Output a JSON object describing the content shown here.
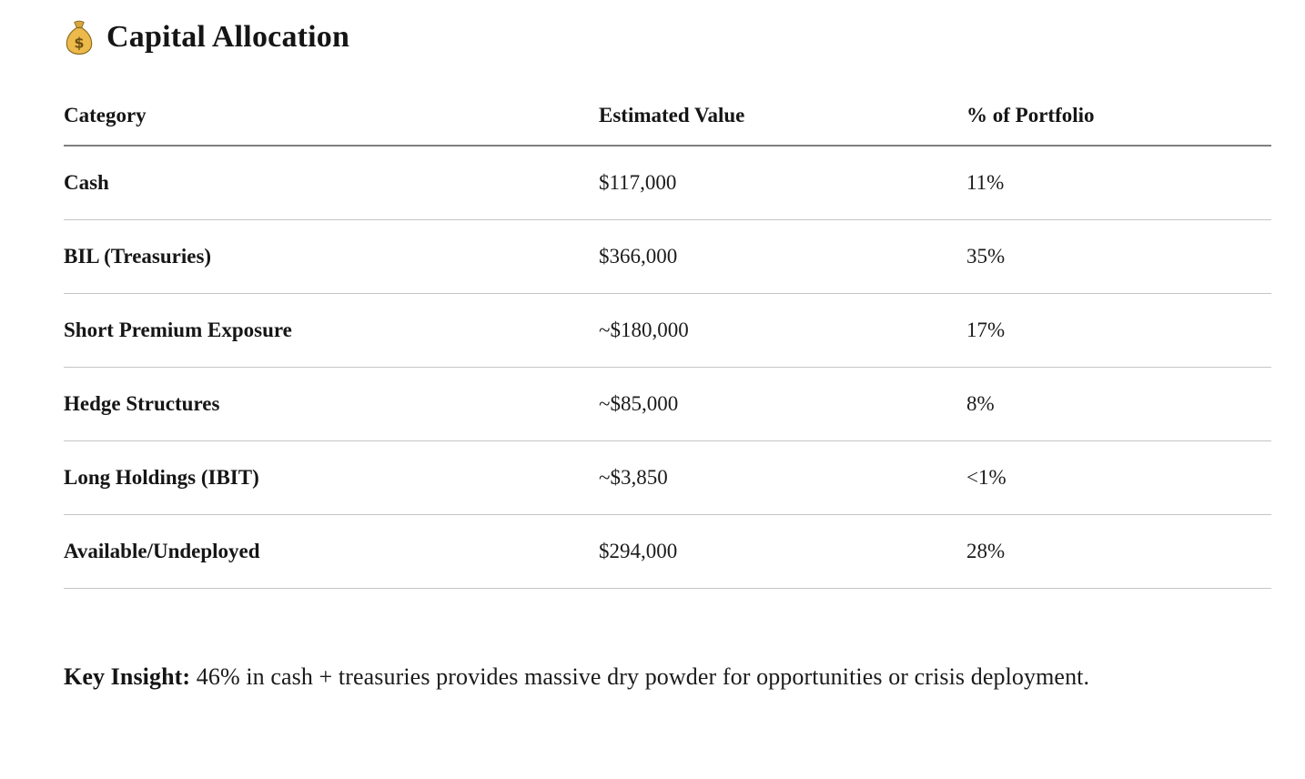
{
  "page": {
    "title": "Capital Allocation",
    "title_icon": "money-bag-icon"
  },
  "table": {
    "columns": [
      "Category",
      "Estimated Value",
      "% of Portfolio"
    ],
    "rows": [
      {
        "category": "Cash",
        "value": "$117,000",
        "pct": "11%"
      },
      {
        "category": "BIL (Treasuries)",
        "value": "$366,000",
        "pct": "35%"
      },
      {
        "category": "Short Premium Exposure",
        "value": "~$180,000",
        "pct": "17%"
      },
      {
        "category": "Hedge Structures",
        "value": "~$85,000",
        "pct": "8%"
      },
      {
        "category": "Long Holdings (IBIT)",
        "value": "~$3,850",
        "pct": "<1%"
      },
      {
        "category": "Available/Undeployed",
        "value": "$294,000",
        "pct": "28%"
      }
    ]
  },
  "insight": {
    "label": "Key Insight:",
    "text": "46% in cash + treasuries provides massive dry powder for opportunities or crisis deployment."
  },
  "colors": {
    "background": "#ffffff",
    "text": "#1b1b1b",
    "header_rule": "#7f7f7f",
    "row_rule": "#c5c5c5",
    "emoji_gold": "#ecba4b"
  }
}
